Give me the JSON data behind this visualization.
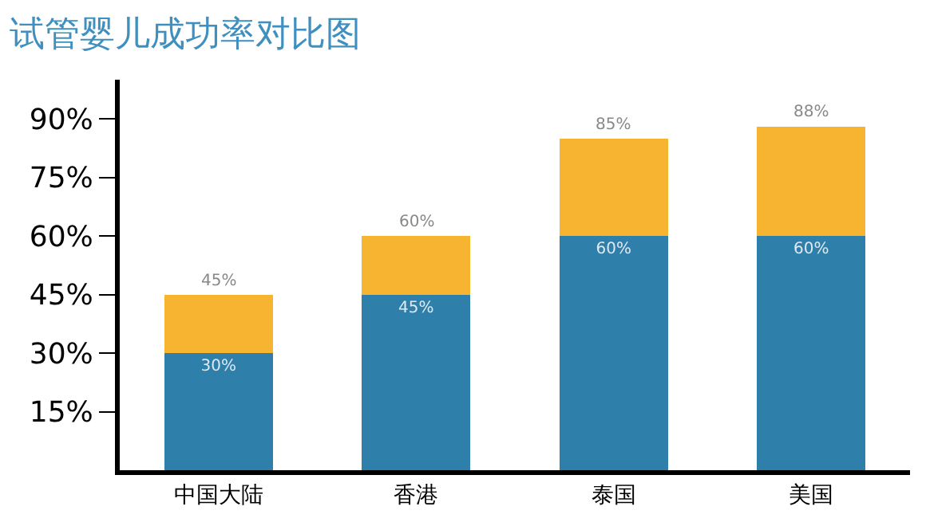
{
  "chart_data": {
    "type": "bar",
    "title": "试管婴儿成功率对比图",
    "categories": [
      "中国大陆",
      "香港",
      "泰国",
      "美国"
    ],
    "stacked": true,
    "series": [
      {
        "color": "#2f7fab",
        "values": [
          30,
          45,
          60,
          60
        ],
        "value_labels": [
          "30%",
          "45%",
          "60%",
          "60%"
        ]
      },
      {
        "color": "#f7b431",
        "values": [
          15,
          15,
          25,
          28
        ]
      }
    ],
    "totals": [
      "45%",
      "60%",
      "85%",
      "88%"
    ],
    "ylim": [
      0,
      100
    ],
    "yticks": [
      {
        "value": 15,
        "label": "15%"
      },
      {
        "value": 30,
        "label": "30%"
      },
      {
        "value": 45,
        "label": "45%"
      },
      {
        "value": 60,
        "label": "60%"
      },
      {
        "value": 75,
        "label": "75%"
      },
      {
        "value": 90,
        "label": "90%"
      }
    ]
  }
}
